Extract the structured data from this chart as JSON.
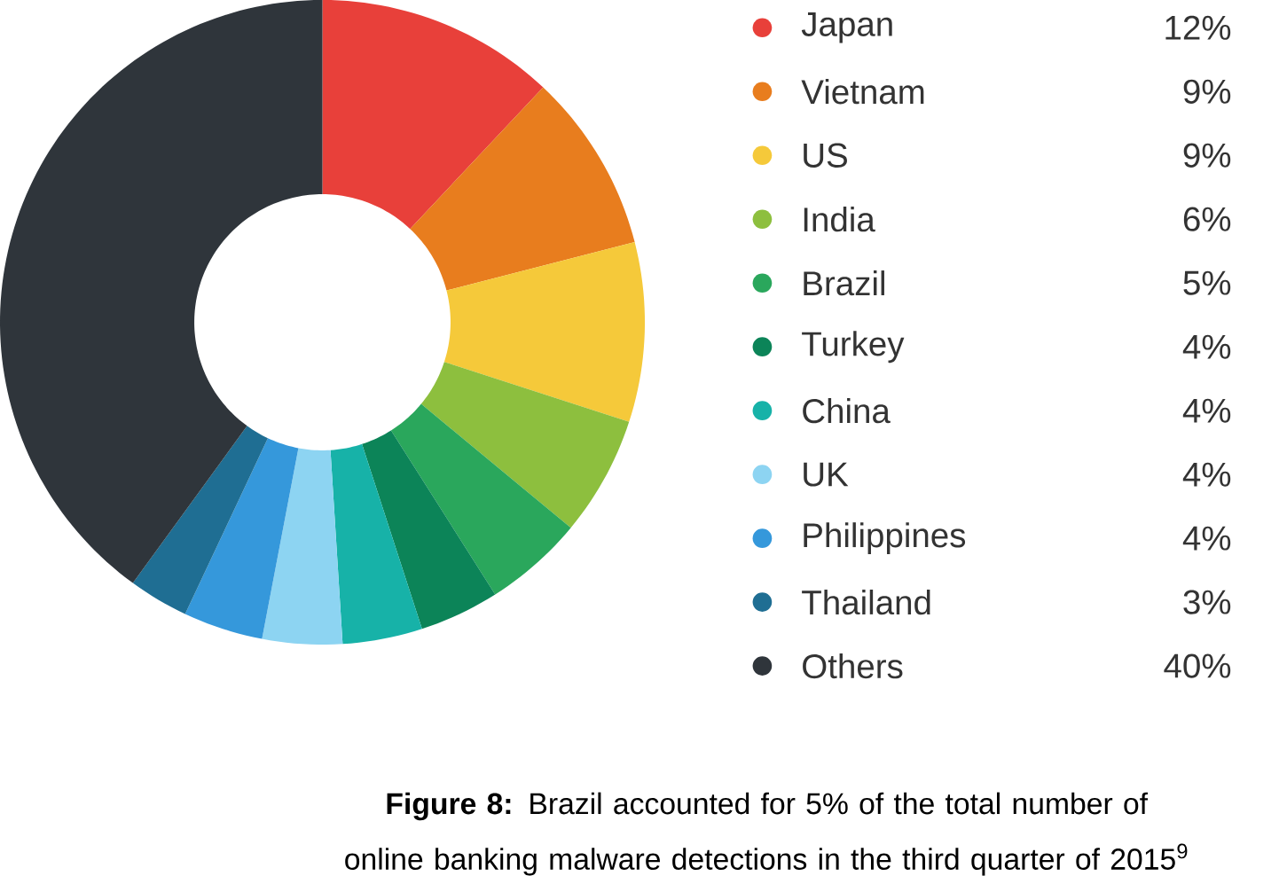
{
  "chart_data": {
    "type": "donut",
    "categories": [
      "Japan",
      "Vietnam",
      "US",
      "India",
      "Brazil",
      "Turkey",
      "China",
      "UK",
      "Philippines",
      "Thailand",
      "Others"
    ],
    "values": [
      12,
      9,
      9,
      6,
      5,
      4,
      4,
      4,
      4,
      3,
      40
    ],
    "colors": [
      "#e8403a",
      "#e87d1e",
      "#f5c93a",
      "#8dbf3e",
      "#2aa75c",
      "#0c8458",
      "#17b2a8",
      "#8dd4f2",
      "#3598db",
      "#1f6e93",
      "#2f353b"
    ],
    "value_labels": [
      "12%",
      "9%",
      "9%",
      "6%",
      "5%",
      "4%",
      "4%",
      "4%",
      "4%",
      "3%",
      "40%"
    ],
    "legend": "right",
    "annotations": [
      "**Figure 8:** Brazil accounted for 5% of the total number of online banking malware detections in the third quarter of 2015$^{9}$"
    ]
  }
}
